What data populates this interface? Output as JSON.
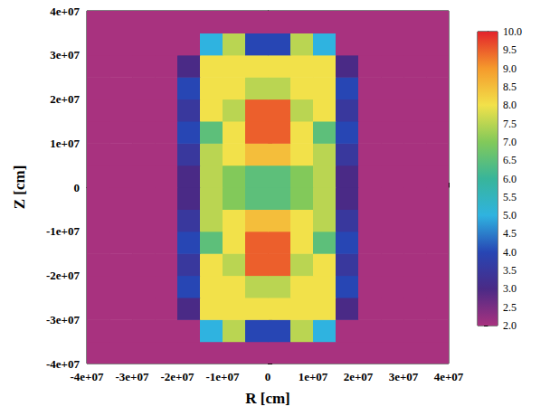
{
  "chart_data": {
    "type": "heatmap",
    "x_label": "R [cm]",
    "y_label": "Z [cm]",
    "xlim": [
      -40000000,
      40000000
    ],
    "ylim": [
      -40000000,
      40000000
    ],
    "xticks": [
      {
        "value": -40000000,
        "label": "-4e+07"
      },
      {
        "value": -30000000,
        "label": "-3e+07"
      },
      {
        "value": -20000000,
        "label": "-2e+07"
      },
      {
        "value": -10000000,
        "label": "-1e+07"
      },
      0,
      {
        "value": 10000000,
        "label": "1e+07"
      },
      {
        "value": 20000000,
        "label": "2e+07"
      },
      {
        "value": 30000000,
        "label": "3e+07"
      },
      {
        "value": 40000000,
        "label": "4e+07"
      }
    ],
    "yticks": [
      {
        "value": -40000000,
        "label": "-4e+07"
      },
      {
        "value": -30000000,
        "label": "-3e+07"
      },
      {
        "value": -20000000,
        "label": "-2e+07"
      },
      {
        "value": -10000000,
        "label": "-1e+07"
      },
      0,
      {
        "value": 10000000,
        "label": "1e+07"
      },
      {
        "value": 20000000,
        "label": "2e+07"
      },
      {
        "value": 30000000,
        "label": "3e+07"
      },
      {
        "value": 40000000,
        "label": "4e+07"
      }
    ],
    "x": [
      -37500000,
      -32500000,
      -27500000,
      -22500000,
      -17500000,
      -12500000,
      -7500000,
      -2500000,
      2500000,
      7500000,
      12500000,
      17500000,
      22500000,
      27500000,
      32500000,
      37500000
    ],
    "y": [
      -37500000,
      -32500000,
      -27500000,
      -22500000,
      -17500000,
      -12500000,
      -7500000,
      -2500000,
      2500000,
      7500000,
      12500000,
      17500000,
      22500000,
      27500000,
      32500000,
      37500000
    ],
    "cells": [
      [
        2,
        2,
        2,
        2,
        2,
        2,
        2,
        2,
        2,
        2,
        2,
        2,
        2,
        2,
        2,
        2
      ],
      [
        2,
        2,
        2,
        2,
        2,
        5,
        7.5,
        4,
        4,
        7.5,
        5,
        2,
        2,
        2,
        2,
        2
      ],
      [
        2,
        2,
        2,
        2,
        3,
        8,
        8,
        8,
        8,
        8,
        8,
        3,
        2,
        2,
        2,
        2
      ],
      [
        2,
        2,
        2,
        2,
        4,
        8,
        8,
        7.5,
        7.5,
        8,
        8,
        4,
        2,
        2,
        2,
        2
      ],
      [
        2,
        2,
        2,
        2,
        3.5,
        8,
        7.5,
        9.5,
        9.5,
        7.5,
        8,
        3.5,
        2,
        2,
        2,
        2
      ],
      [
        2,
        2,
        2,
        2,
        4,
        6.5,
        8,
        9.5,
        9.5,
        8,
        6.5,
        4,
        2,
        2,
        2,
        2
      ],
      [
        2,
        2,
        2,
        2,
        3.5,
        7.5,
        8,
        8.5,
        8.5,
        8,
        7.5,
        3.5,
        2,
        2,
        2,
        2
      ],
      [
        2,
        2,
        2,
        2,
        3,
        7.5,
        7,
        6.5,
        6.5,
        7,
        7.5,
        3,
        2,
        2,
        2,
        2
      ],
      [
        2,
        2,
        2,
        2,
        3,
        7.5,
        7,
        6.5,
        6.5,
        7,
        7.5,
        3,
        2,
        2,
        2,
        2
      ],
      [
        2,
        2,
        2,
        2,
        3.5,
        7.5,
        8,
        8.5,
        8.5,
        8,
        7.5,
        3.5,
        2,
        2,
        2,
        2
      ],
      [
        2,
        2,
        2,
        2,
        4,
        6.5,
        8,
        9.5,
        9.5,
        8,
        6.5,
        4,
        2,
        2,
        2,
        2
      ],
      [
        2,
        2,
        2,
        2,
        3.5,
        8,
        7.5,
        9.5,
        9.5,
        7.5,
        8,
        3.5,
        2,
        2,
        2,
        2
      ],
      [
        2,
        2,
        2,
        2,
        4,
        8,
        8,
        7.5,
        7.5,
        8,
        8,
        4,
        2,
        2,
        2,
        2
      ],
      [
        2,
        2,
        2,
        2,
        3,
        8,
        8,
        8,
        8,
        8,
        8,
        3,
        2,
        2,
        2,
        2
      ],
      [
        2,
        2,
        2,
        2,
        2,
        5,
        7.5,
        4,
        4,
        7.5,
        5,
        2,
        2,
        2,
        2,
        2
      ],
      [
        2,
        2,
        2,
        2,
        2,
        2,
        2,
        2,
        2,
        2,
        2,
        2,
        2,
        2,
        2,
        2
      ]
    ],
    "colorbar_range": [
      2,
      10
    ],
    "colorbar_ticks": [
      {
        "value": 2,
        "label": "2.0"
      },
      2.5,
      {
        "value": 3,
        "label": "3.0"
      },
      3.5,
      {
        "value": 4,
        "label": "4.0"
      },
      4.5,
      {
        "value": 5,
        "label": "5.0"
      },
      5.5,
      {
        "value": 6,
        "label": "6.0"
      },
      6.5,
      {
        "value": 7,
        "label": "7.0"
      },
      7.5,
      {
        "value": 8,
        "label": "8.0"
      },
      8.5,
      {
        "value": 9,
        "label": "9.0"
      },
      9.5,
      {
        "value": 10,
        "label": "10.0"
      }
    ]
  }
}
